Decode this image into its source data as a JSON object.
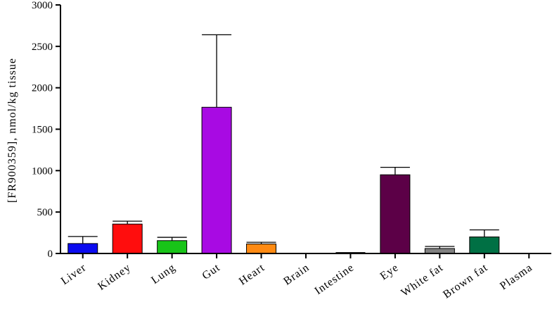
{
  "chart_data": {
    "type": "bar",
    "title": "",
    "xlabel": "",
    "ylabel": "[FR900359], nmol/kg tissue",
    "ylim": [
      0,
      3000
    ],
    "yticks": [
      0,
      500,
      1000,
      1500,
      2000,
      2500,
      3000
    ],
    "grid": false,
    "categories": [
      "Liver",
      "Kidney",
      "Lung",
      "Gut",
      "Heart",
      "Brain",
      "Intestine",
      "Eye",
      "White fat",
      "Brown fat",
      "Plasma"
    ],
    "values": [
      120,
      355,
      155,
      1765,
      115,
      0,
      3,
      950,
      60,
      200,
      0
    ],
    "errors": [
      85,
      35,
      40,
      875,
      20,
      0,
      7,
      90,
      25,
      85,
      0
    ],
    "colors": [
      "#0b0bf0",
      "#ff0d0d",
      "#18c418",
      "#a80ae3",
      "#ff8a12",
      "#7f7f7f",
      "#7f7f7f",
      "#5c0047",
      "#808080",
      "#007044",
      "#7f7f7f"
    ]
  }
}
